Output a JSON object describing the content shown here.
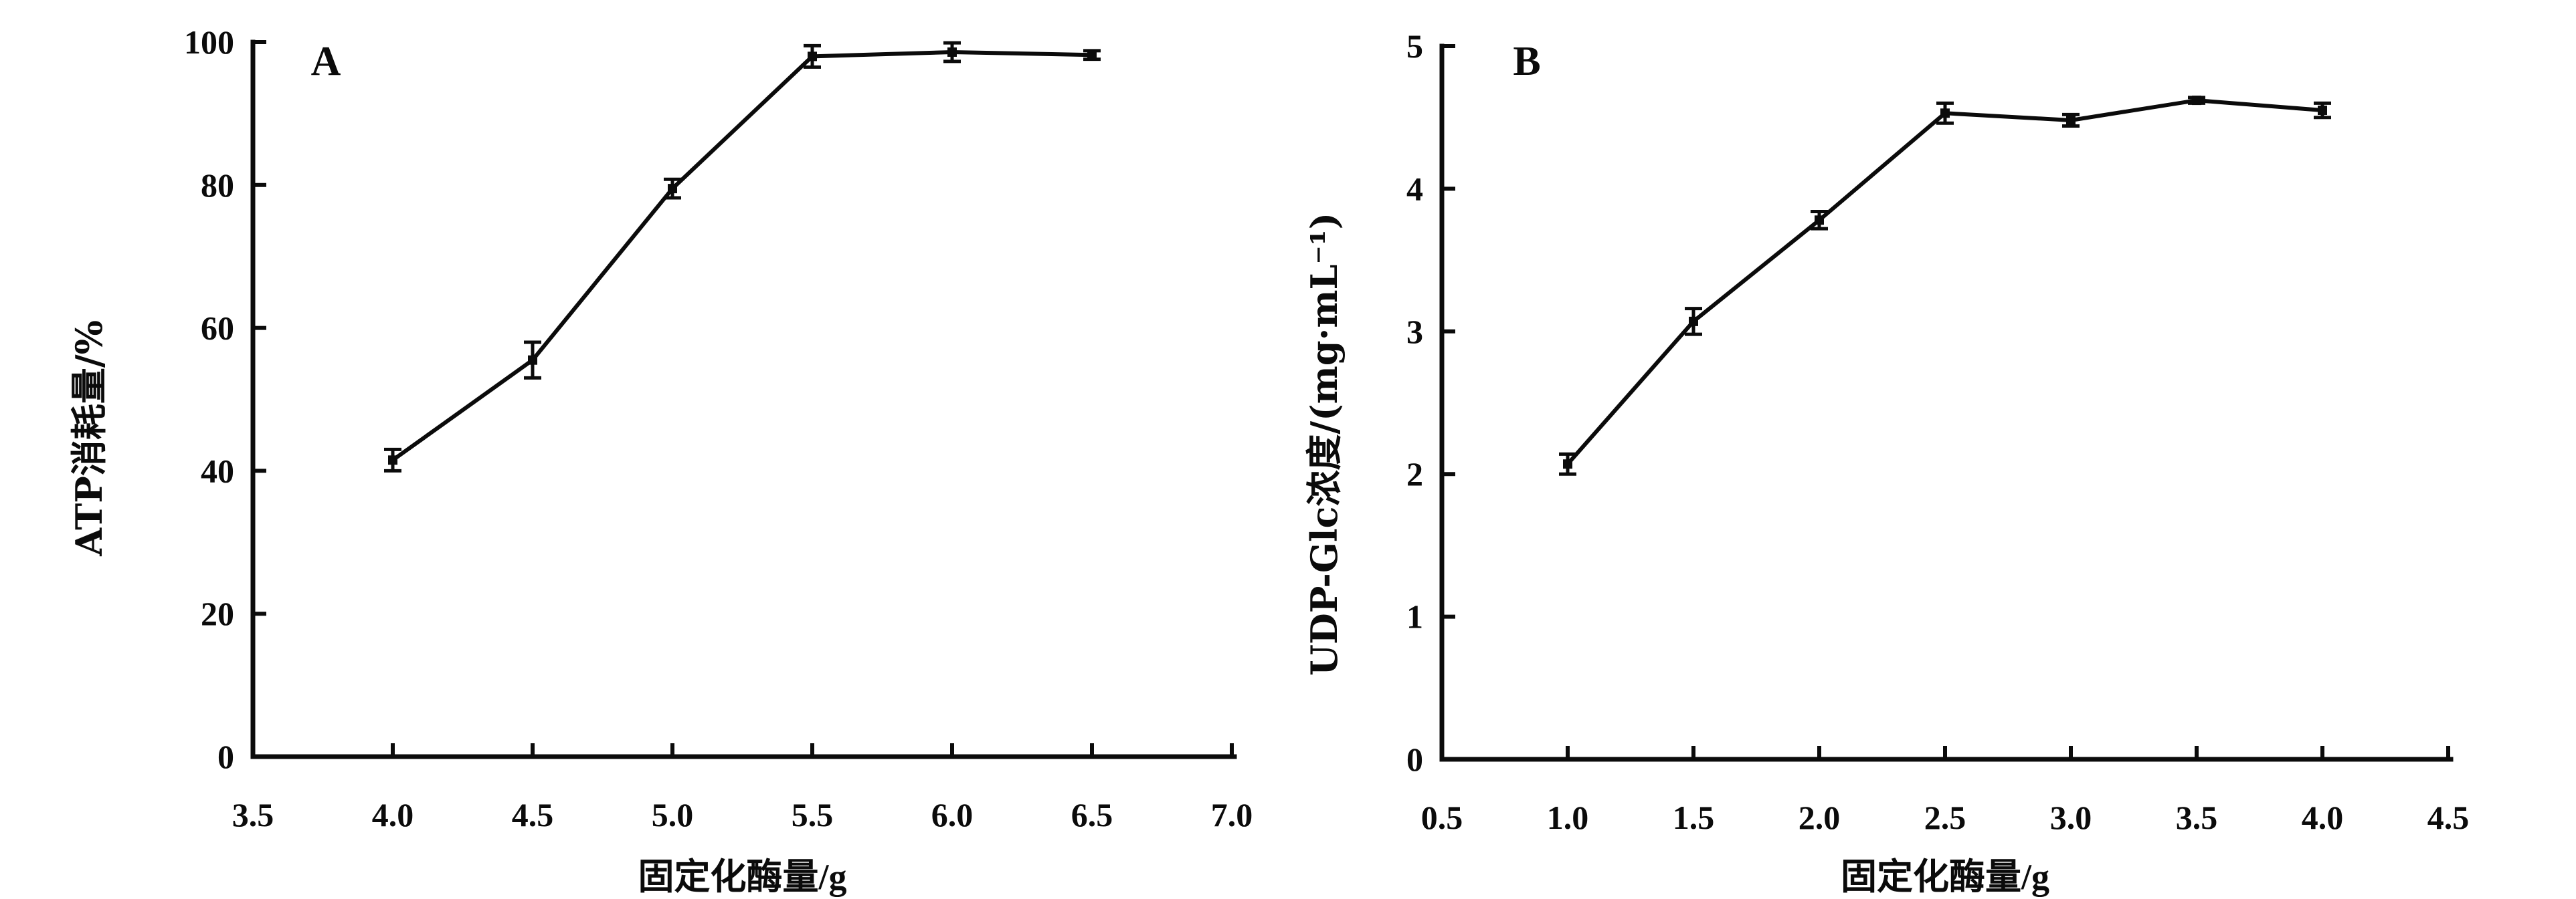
{
  "figure": {
    "background": "#ffffff",
    "ink": "#0b0b0b",
    "description": "Two-panel line chart with error bars"
  },
  "chart_data": [
    {
      "id": "panel-a",
      "type": "line",
      "panel_label": "A",
      "title": "",
      "xlabel": "固定化酶量/g",
      "ylabel": "ATP消耗量/%",
      "x": [
        4.0,
        4.5,
        5.0,
        5.5,
        6.0,
        6.5
      ],
      "y": [
        41.5,
        55.5,
        79.5,
        98.0,
        98.6,
        98.2
      ],
      "yerr": [
        1.5,
        2.5,
        1.3,
        1.5,
        1.3,
        0.6
      ],
      "xlim": [
        3.5,
        7.0
      ],
      "ylim": [
        0,
        100
      ],
      "x_tick_values": [
        3.5,
        4.0,
        4.5,
        5.0,
        5.5,
        6.0,
        6.5,
        7.0
      ],
      "x_tick_labels": [
        "3.5",
        "4.0",
        "4.5",
        "5.0",
        "5.5",
        "6.0",
        "6.5",
        "7.0"
      ],
      "y_tick_values": [
        0,
        20,
        40,
        60,
        80,
        100
      ],
      "y_tick_labels": [
        "0",
        "20",
        "40",
        "60",
        "80",
        "100"
      ],
      "marker": "square",
      "error_bars": true,
      "grid": false,
      "legend": null,
      "series_color": "#0b0b0b"
    },
    {
      "id": "panel-b",
      "type": "line",
      "panel_label": "B",
      "title": "",
      "xlabel": "固定化酶量/g",
      "ylabel": "UDP-Glc浓度/(mg·mL⁻¹)",
      "x": [
        1.0,
        1.5,
        2.0,
        2.5,
        3.0,
        3.5,
        4.0
      ],
      "y": [
        2.07,
        3.07,
        3.78,
        4.53,
        4.48,
        4.62,
        4.55
      ],
      "yerr": [
        0.07,
        0.09,
        0.06,
        0.07,
        0.04,
        0.02,
        0.05
      ],
      "xlim": [
        0.5,
        4.5
      ],
      "ylim": [
        0,
        5
      ],
      "x_tick_values": [
        0.5,
        1.0,
        1.5,
        2.0,
        2.5,
        3.0,
        3.5,
        4.0,
        4.5
      ],
      "x_tick_labels": [
        "0.5",
        "1.0",
        "1.5",
        "2.0",
        "2.5",
        "3.0",
        "3.5",
        "4.0",
        "4.5"
      ],
      "y_tick_values": [
        0,
        1,
        2,
        3,
        4,
        5
      ],
      "y_tick_labels": [
        "0",
        "1",
        "2",
        "3",
        "4",
        "5"
      ],
      "marker": "square",
      "error_bars": true,
      "grid": false,
      "legend": null,
      "series_color": "#0b0b0b"
    }
  ]
}
